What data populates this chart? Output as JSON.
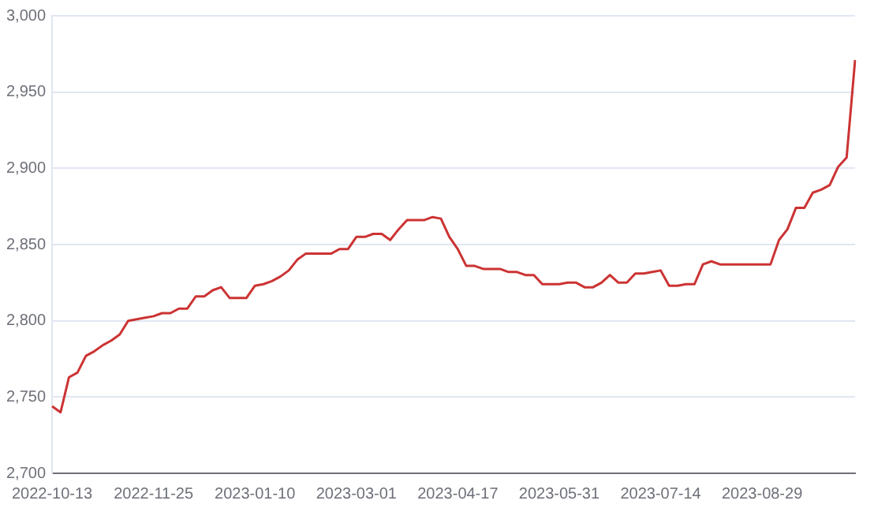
{
  "chart_data": {
    "type": "line",
    "categories": [
      "2022-10-13",
      null,
      null,
      null,
      null,
      null,
      null,
      null,
      null,
      null,
      null,
      null,
      "2022-11-25",
      null,
      null,
      null,
      null,
      null,
      null,
      null,
      null,
      null,
      null,
      null,
      "2023-01-10",
      null,
      null,
      null,
      null,
      null,
      null,
      null,
      null,
      null,
      null,
      null,
      "2023-03-01",
      null,
      null,
      null,
      null,
      null,
      null,
      null,
      null,
      null,
      null,
      null,
      "2023-04-17",
      null,
      null,
      null,
      null,
      null,
      null,
      null,
      null,
      null,
      null,
      null,
      "2023-05-31",
      null,
      null,
      null,
      null,
      null,
      null,
      null,
      null,
      null,
      null,
      null,
      "2023-07-14",
      null,
      null,
      null,
      null,
      null,
      null,
      null,
      null,
      null,
      null,
      null,
      "2023-08-29",
      null,
      null,
      null,
      null,
      null,
      null,
      null,
      null,
      null,
      null,
      null
    ],
    "series": [
      {
        "color": "#cc3333",
        "values": [
          2744,
          2740,
          2763,
          2766,
          2777,
          2780,
          2784,
          2787,
          2791,
          2800,
          2801,
          2802,
          2803,
          2805,
          2805,
          2808,
          2808,
          2816,
          2816,
          2820,
          2822,
          2815,
          2815,
          2815,
          2823,
          2824,
          2826,
          2829,
          2833,
          2840,
          2844,
          2844,
          2844,
          2844,
          2847,
          2847,
          2855,
          2855,
          2857,
          2857,
          2853,
          2860,
          2866,
          2866,
          2866,
          2868,
          2867,
          2855,
          2847,
          2836,
          2836,
          2834,
          2834,
          2834,
          2832,
          2832,
          2830,
          2830,
          2824,
          2824,
          2824,
          2825,
          2825,
          2822,
          2822,
          2825,
          2830,
          2825,
          2825,
          2831,
          2831,
          2832,
          2833,
          2823,
          2823,
          2824,
          2824,
          2837,
          2839,
          2837,
          2837,
          2837,
          2837,
          2837,
          2837,
          2837,
          2853,
          2860,
          2874,
          2874,
          2884,
          2886,
          2889,
          2901,
          2907,
          2971
        ]
      }
    ],
    "ylim": [
      2700,
      3000
    ],
    "yticks": [
      {
        "value": 2700,
        "label": "2,700"
      },
      {
        "value": 2750,
        "label": "2,750"
      },
      {
        "value": 2800,
        "label": "2,800"
      },
      {
        "value": 2850,
        "label": "2,850"
      },
      {
        "value": 2900,
        "label": "2,900"
      },
      {
        "value": 2950,
        "label": "2,950"
      },
      {
        "value": 3000,
        "label": "3,000"
      }
    ],
    "grid": "y",
    "legend": false,
    "marker": "none",
    "line_style": "solid"
  }
}
